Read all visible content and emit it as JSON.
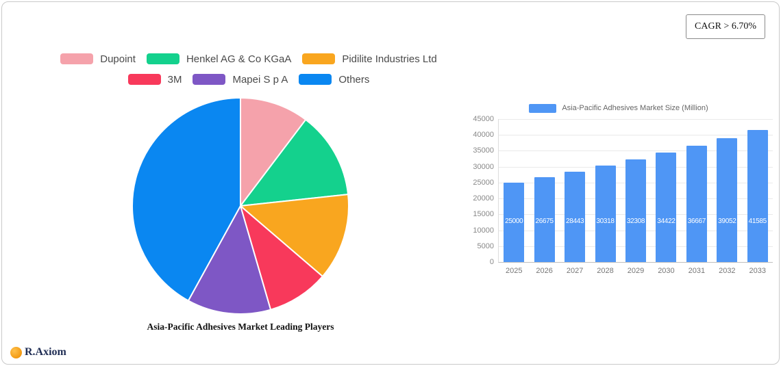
{
  "cagr_badge": "CAGR > 6.70%",
  "brand": {
    "name": "R.Axiom"
  },
  "chart_data": [
    {
      "type": "pie",
      "title": "Asia-Pacific Adhesives Market Leading Players",
      "labels": [
        "Dupoint",
        "Henkel AG & Co  KGaA",
        "Pidilite Industries Ltd",
        "3M",
        "Mapei S p A",
        "Others"
      ],
      "values": [
        10.3,
        13.0,
        13.0,
        9.2,
        12.5,
        42.0
      ],
      "colors": [
        "#f5a2ab",
        "#14d18d",
        "#f9a61f",
        "#f8395b",
        "#7e57c5",
        "#0a87f1"
      ],
      "legend_position": "top",
      "start_angle": "12 o'clock, clockwise"
    },
    {
      "type": "bar",
      "legend_label": "Asia-Pacific Adhesives Market Size (Million)",
      "categories": [
        "2025",
        "2026",
        "2027",
        "2028",
        "2029",
        "2030",
        "2031",
        "2032",
        "2033"
      ],
      "values": [
        25000,
        26675,
        28443,
        30318,
        32308,
        34422,
        36667,
        39052,
        41585
      ],
      "ylim": [
        0,
        45000
      ],
      "ytick_step": 5000,
      "bar_color": "#4f96f5",
      "grid": true,
      "value_labels": "inside bars, white, horizontal"
    }
  ]
}
